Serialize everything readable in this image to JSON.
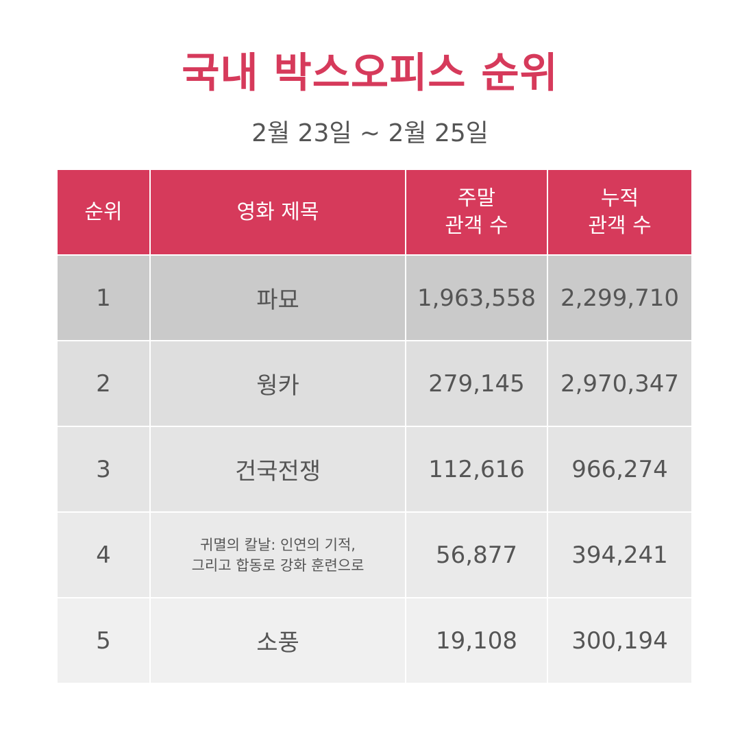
{
  "title": "국내 박스오피스 순위",
  "subtitle": "2월 23일 ~ 2월 25일",
  "table": {
    "headers": {
      "rank": "순위",
      "movie_title": "영화 제목",
      "weekend_line1": "주말",
      "weekend_line2": "관객 수",
      "total_line1": "누적",
      "total_line2": "관객 수"
    },
    "rows": [
      {
        "rank": "1",
        "title": "파묘",
        "weekend": "1,963,558",
        "total": "2,299,710"
      },
      {
        "rank": "2",
        "title": "웡카",
        "weekend": "279,145",
        "total": "2,970,347"
      },
      {
        "rank": "3",
        "title": "건국전쟁",
        "weekend": "112,616",
        "total": "966,274"
      },
      {
        "rank": "4",
        "title_line1": "귀멸의 칼날: 인연의 기적,",
        "title_line2": "그리고 합동로 강화 훈련으로",
        "weekend": "56,877",
        "total": "394,241"
      },
      {
        "rank": "5",
        "title": "소풍",
        "weekend": "19,108",
        "total": "300,194"
      }
    ]
  },
  "colors": {
    "accent": "#d63a5b",
    "text": "#555555"
  }
}
